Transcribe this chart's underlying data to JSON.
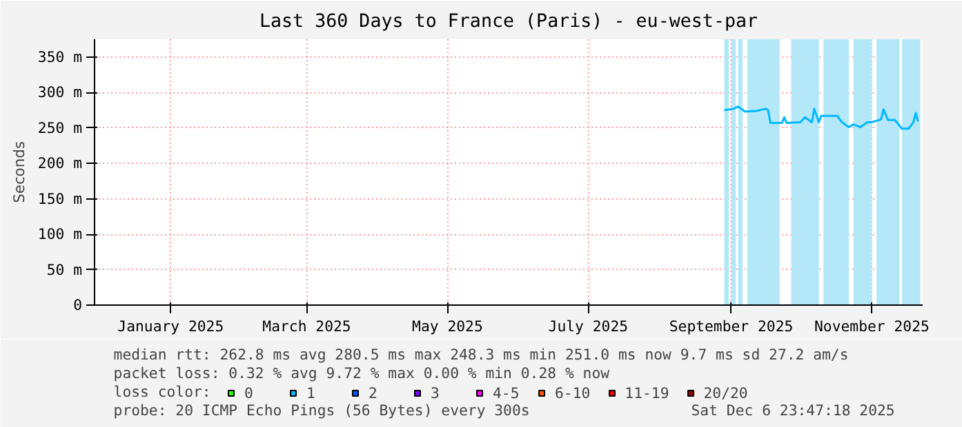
{
  "chart_data": {
    "type": "line",
    "title": "Last 360 Days to France (Paris) - eu-west-par",
    "ylabel": "Seconds",
    "x": [
      "2025-09-13",
      "2025-09-17",
      "2025-09-19",
      "2025-09-22",
      "2025-09-27",
      "2025-10-01",
      "2025-10-02",
      "2025-10-03",
      "2025-10-08",
      "2025-10-09",
      "2025-10-10",
      "2025-10-16",
      "2025-10-18",
      "2025-10-21",
      "2025-10-22",
      "2025-10-24",
      "2025-10-25",
      "2025-11-01",
      "2025-11-03",
      "2025-11-06",
      "2025-11-08",
      "2025-11-11",
      "2025-11-14",
      "2025-11-16",
      "2025-11-20",
      "2025-11-21",
      "2025-11-23",
      "2025-11-26",
      "2025-11-29",
      "2025-12-02",
      "2025-12-04",
      "2025-12-05",
      "2025-12-06"
    ],
    "series": [
      {
        "name": "0",
        "color": "#26ff00",
        "values": [
          null,
          null,
          null,
          null,
          null,
          null,
          null,
          null,
          null,
          null,
          null,
          null,
          null,
          null,
          null,
          null,
          null,
          null,
          null,
          null,
          null,
          null,
          null,
          null,
          null,
          null,
          null,
          null,
          null,
          null,
          null,
          null,
          null
        ]
      },
      {
        "name": "1",
        "color": "#00b8ff",
        "values": [
          275,
          277,
          280,
          273,
          274,
          277,
          275,
          257,
          257,
          265,
          257,
          258,
          265,
          258,
          277,
          258,
          267,
          267,
          258,
          251,
          255,
          251,
          258,
          258,
          262,
          276,
          261,
          261,
          249,
          249,
          258,
          271,
          259
        ]
      },
      {
        "name": "2",
        "color": "#0059ff",
        "values": [
          null,
          null,
          null,
          null,
          null,
          null,
          null,
          null,
          null,
          null,
          null,
          null,
          null,
          null,
          null,
          null,
          null,
          null,
          null,
          null,
          null,
          null,
          null,
          null,
          null,
          null,
          null,
          null,
          null,
          null,
          null,
          null,
          null
        ]
      },
      {
        "name": "3",
        "color": "#7e00ff",
        "values": [
          null,
          null,
          null,
          null,
          null,
          null,
          null,
          null,
          null,
          null,
          null,
          null,
          null,
          null,
          null,
          null,
          null,
          null,
          null,
          null,
          null,
          null,
          null,
          null,
          null,
          null,
          null,
          null,
          null,
          null,
          null,
          null,
          null
        ]
      },
      {
        "name": "4-5",
        "color": "#ff00ff",
        "values": [
          null,
          null,
          null,
          null,
          null,
          null,
          null,
          null,
          null,
          null,
          null,
          null,
          null,
          null,
          null,
          null,
          null,
          null,
          null,
          null,
          null,
          null,
          null,
          null,
          null,
          null,
          null,
          null,
          null,
          null,
          null,
          null,
          null
        ]
      },
      {
        "name": "6-10",
        "color": "#ff5500",
        "values": [
          null,
          null,
          null,
          null,
          null,
          null,
          null,
          null,
          null,
          null,
          null,
          null,
          null,
          null,
          null,
          null,
          null,
          null,
          null,
          null,
          null,
          null,
          null,
          null,
          null,
          null,
          null,
          null,
          null,
          null,
          null,
          null,
          null
        ]
      },
      {
        "name": "11-19",
        "color": "#ff0000",
        "values": [
          null,
          null,
          null,
          null,
          null,
          null,
          null,
          null,
          null,
          null,
          null,
          null,
          null,
          null,
          null,
          null,
          null,
          null,
          null,
          null,
          null,
          null,
          null,
          null,
          null,
          null,
          null,
          null,
          null,
          null,
          null,
          null,
          null
        ]
      },
      {
        "name": "20/20",
        "color": "#a10000",
        "values": [
          null,
          null,
          null,
          null,
          null,
          null,
          null,
          null,
          null,
          null,
          null,
          null,
          null,
          null,
          null,
          null,
          null,
          null,
          null,
          null,
          null,
          null,
          null,
          null,
          null,
          null,
          null,
          null,
          null,
          null,
          null,
          null,
          null
        ]
      }
    ],
    "legend_title": "loss color:",
    "legend": "bottom",
    "xlim": [
      "2024-12-14",
      "2025-12-08"
    ],
    "xticks": [
      {
        "value": "2025-01-16",
        "label": "January 2025"
      },
      {
        "value": "2025-03-16",
        "label": "March 2025"
      },
      {
        "value": "2025-05-16",
        "label": "May 2025"
      },
      {
        "value": "2025-07-16",
        "label": "July 2025"
      },
      {
        "value": "2025-09-16",
        "label": "September 2025"
      },
      {
        "value": "2025-11-16",
        "label": "November 2025"
      }
    ],
    "ylim": [
      0,
      375
    ],
    "yticks": [
      0,
      {
        "value": 50,
        "label": "50 m"
      },
      {
        "value": 100,
        "label": "100 m"
      },
      {
        "value": 150,
        "label": "150 m"
      },
      {
        "value": 200,
        "label": "200 m"
      },
      {
        "value": 250,
        "label": "250 m"
      },
      {
        "value": 300,
        "label": "300 m"
      },
      {
        "value": 350,
        "label": "350 m"
      }
    ],
    "grid": true,
    "bands": [
      {
        "axis": "x",
        "from": "2025-09-13",
        "to": "2025-09-15",
        "color": "#b4e8f8"
      },
      {
        "axis": "x",
        "from": "2025-09-16",
        "to": "2025-09-18",
        "color": "#b4e8f8"
      },
      {
        "axis": "x",
        "from": "2025-09-19",
        "to": "2025-09-21",
        "color": "#b4e8f8"
      },
      {
        "axis": "x",
        "from": "2025-09-23",
        "to": "2025-10-07",
        "color": "#b4e8f8"
      },
      {
        "axis": "x",
        "from": "2025-10-12",
        "to": "2025-10-24",
        "color": "#b4e8f8"
      },
      {
        "axis": "x",
        "from": "2025-10-26",
        "to": "2025-11-06",
        "color": "#b4e8f8"
      },
      {
        "axis": "x",
        "from": "2025-11-08",
        "to": "2025-11-16",
        "color": "#b4e8f8"
      },
      {
        "axis": "x",
        "from": "2025-11-18",
        "to": "2025-11-28",
        "color": "#b4e8f8"
      },
      {
        "axis": "x",
        "from": "2025-11-29",
        "to": "2025-12-07",
        "color": "#b4e8f8"
      }
    ],
    "annotations": [
      "median rtt:  262.8 ms avg  280.5 ms max  248.3 ms min  251.0 ms now  9.7 ms sd  27.2   am/s",
      "packet loss: 0.32 % avg  9.72 % max  0.00 % min  0.28 % now",
      "probe:       20 ICMP Echo Pings (56 Bytes) every 300s",
      "Sat Dec  6 23:47:18 2025"
    ]
  }
}
